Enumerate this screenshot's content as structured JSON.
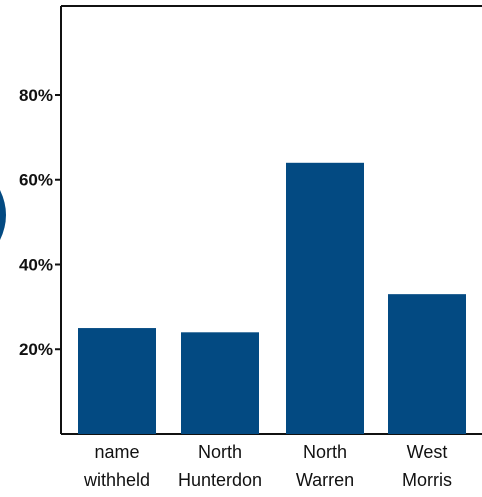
{
  "colors": {
    "bar": "#034a82",
    "axis": "#111111",
    "edge_mark": "#034a82"
  },
  "chart_data": {
    "type": "bar",
    "categories": [
      [
        "name",
        "withheld"
      ],
      [
        "North",
        "Hunterdon"
      ],
      [
        "North",
        "Warren"
      ],
      [
        "West",
        "Morris"
      ]
    ],
    "values": [
      25,
      24,
      64,
      33
    ],
    "yticks": [
      20,
      40,
      60,
      80
    ],
    "ytick_labels": [
      "20%",
      "40%",
      "60%",
      "80%"
    ],
    "ylim": [
      0,
      101
    ],
    "grid": false,
    "title": "",
    "xlabel": "",
    "ylabel": ""
  }
}
